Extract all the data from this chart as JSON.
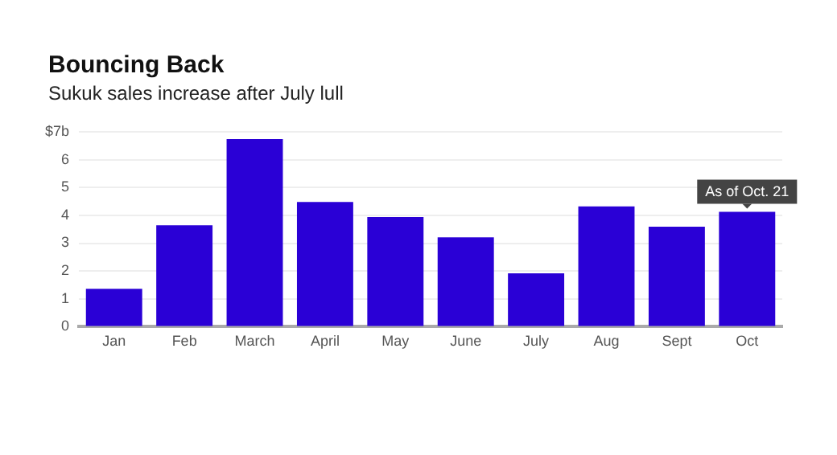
{
  "chart_data": {
    "type": "bar",
    "title": "Bouncing Back",
    "subtitle": "Sukuk sales increase after July lull",
    "categories": [
      "Jan",
      "Feb",
      "March",
      "April",
      "May",
      "June",
      "July",
      "Aug",
      "Sept",
      "Oct"
    ],
    "values": [
      1.36,
      3.64,
      6.74,
      4.48,
      3.94,
      3.21,
      1.92,
      4.32,
      3.59,
      4.13
    ],
    "color": "#2a00d6",
    "ylim": [
      0,
      7
    ],
    "yticks": [
      0,
      1,
      2,
      3,
      4,
      5,
      6,
      {
        "value": 7,
        "label": "$7b"
      }
    ],
    "grid": "y",
    "annotations": [
      {
        "text": "As of Oct. 21",
        "x": "Oct",
        "y": 4.13
      }
    ]
  }
}
